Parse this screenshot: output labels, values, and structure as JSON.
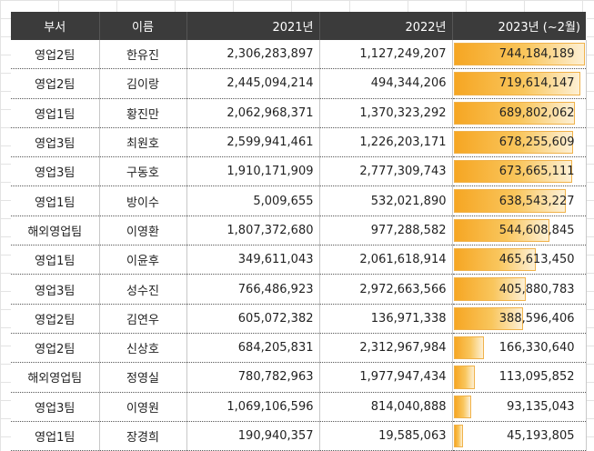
{
  "sheet": {
    "columns": [
      "부서",
      "이름",
      "2021년",
      "2022년",
      "2023년 (~2월)"
    ],
    "bar_color": "#f6a623",
    "bar_max": 744184189,
    "rows": [
      {
        "dept": "영업2팀",
        "name": "한유진",
        "y2021": "2,306,283,897",
        "y2022": "1,127,249,207",
        "y2023": "744,184,189",
        "v2023": 744184189
      },
      {
        "dept": "영업2팀",
        "name": "김이랑",
        "y2021": "2,445,094,214",
        "y2022": "494,344,206",
        "y2023": "719,614,147",
        "v2023": 719614147
      },
      {
        "dept": "영업1팀",
        "name": "황진만",
        "y2021": "2,062,968,371",
        "y2022": "1,370,323,292",
        "y2023": "689,802,062",
        "v2023": 689802062
      },
      {
        "dept": "영업3팀",
        "name": "최원호",
        "y2021": "2,599,941,461",
        "y2022": "1,226,203,171",
        "y2023": "678,255,609",
        "v2023": 678255609
      },
      {
        "dept": "영업3팀",
        "name": "구동호",
        "y2021": "1,910,171,909",
        "y2022": "2,777,309,743",
        "y2023": "673,665,111",
        "v2023": 673665111
      },
      {
        "dept": "영업1팀",
        "name": "방이수",
        "y2021": "5,009,655",
        "y2022": "532,021,890",
        "y2023": "638,543,227",
        "v2023": 638543227
      },
      {
        "dept": "해외영업팀",
        "name": "이영환",
        "y2021": "1,807,372,680",
        "y2022": "977,288,582",
        "y2023": "544,608,845",
        "v2023": 544608845
      },
      {
        "dept": "영업1팀",
        "name": "이윤후",
        "y2021": "349,611,043",
        "y2022": "2,061,618,914",
        "y2023": "465,613,450",
        "v2023": 465613450
      },
      {
        "dept": "영업3팀",
        "name": "성수진",
        "y2021": "766,486,923",
        "y2022": "2,972,663,566",
        "y2023": "405,880,783",
        "v2023": 405880783
      },
      {
        "dept": "영업2팀",
        "name": "김연우",
        "y2021": "605,072,382",
        "y2022": "136,971,338",
        "y2023": "388,596,406",
        "v2023": 388596406
      },
      {
        "dept": "영업2팀",
        "name": "신상호",
        "y2021": "684,205,831",
        "y2022": "2,312,967,984",
        "y2023": "166,330,640",
        "v2023": 166330640
      },
      {
        "dept": "해외영업팀",
        "name": "정영실",
        "y2021": "780,782,963",
        "y2022": "1,977,947,434",
        "y2023": "113,095,852",
        "v2023": 113095852
      },
      {
        "dept": "영업3팀",
        "name": "이영원",
        "y2021": "1,069,106,596",
        "y2022": "814,040,888",
        "y2023": "93,135,043",
        "v2023": 93135043
      },
      {
        "dept": "영업1팀",
        "name": "장경희",
        "y2021": "190,940,357",
        "y2022": "19,585,063",
        "y2023": "45,193,805",
        "v2023": 45193805
      }
    ]
  }
}
